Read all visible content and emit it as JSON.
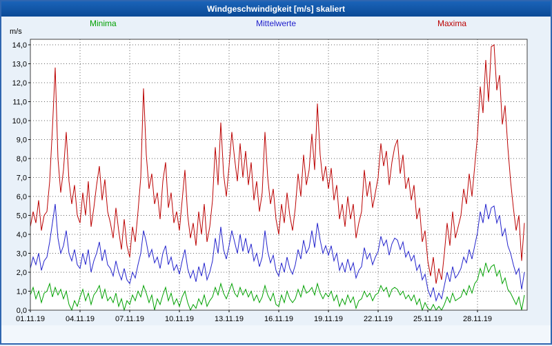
{
  "window": {
    "title": "Windgeschwindigkeit [m/s] skaliert"
  },
  "legend": [
    {
      "label": "Minima",
      "color": "#00a000"
    },
    {
      "label": "Mittelwerte",
      "color": "#2222cc"
    },
    {
      "label": "Maxima",
      "color": "#bb0000"
    }
  ],
  "chart_data": {
    "type": "line",
    "title": "Windgeschwindigkeit [m/s] skaliert",
    "xlabel": "",
    "ylabel": "m/s",
    "ylim": [
      0,
      14.3
    ],
    "ytick_step": 1.0,
    "ytick_labels": [
      "0,0",
      "1,0",
      "2,0",
      "3,0",
      "4,0",
      "5,0",
      "6,0",
      "7,0",
      "8,0",
      "9,0",
      "10,0",
      "11,0",
      "12,0",
      "13,0",
      "14,0"
    ],
    "xtick_labels": [
      "01.11.19",
      "04.11.19",
      "07.11.19",
      "10.11.19",
      "13.11.19",
      "16.11.19",
      "19.11.19",
      "22.11.19",
      "25.11.19",
      "28.11.19"
    ],
    "xtick_day_interval": 3,
    "x_days_span": 30,
    "grid": "dotted",
    "legend_position": "top",
    "series": [
      {
        "name": "Minima",
        "color": "#00a000",
        "values": [
          0.8,
          1.2,
          0.6,
          1.0,
          0.4,
          0.9,
          1.0,
          1.4,
          0.7,
          1.2,
          0.8,
          1.1,
          0.6,
          1.0,
          0.3,
          0.0,
          0.5,
          0.2,
          0.7,
          1.1,
          0.5,
          0.9,
          0.3,
          0.8,
          1.0,
          1.3,
          0.6,
          1.1,
          0.5,
          0.7,
          0.4,
          0.9,
          0.2,
          0.6,
          0.0,
          0.5,
          0.3,
          0.8,
          0.5,
          1.0,
          0.7,
          1.3,
          0.9,
          0.4,
          0.8,
          0.0,
          0.6,
          0.3,
          0.8,
          1.2,
          0.5,
          0.9,
          0.3,
          0.6,
          0.2,
          0.7,
          1.0,
          0.4,
          0.0,
          0.3,
          0.1,
          0.6,
          0.3,
          0.8,
          0.2,
          0.5,
          0.7,
          1.2,
          0.8,
          1.4,
          0.9,
          0.6,
          1.0,
          1.4,
          0.9,
          0.7,
          1.2,
          0.8,
          1.1,
          0.7,
          1.0,
          0.5,
          0.8,
          0.4,
          0.7,
          1.3,
          0.8,
          0.5,
          0.9,
          0.3,
          0.2,
          0.8,
          0.4,
          1.0,
          0.6,
          0.4,
          0.6,
          1.1,
          0.7,
          1.3,
          0.9,
          1.0,
          1.2,
          0.8,
          1.4,
          0.9,
          0.6,
          0.9,
          0.7,
          1.0,
          0.5,
          0.8,
          0.2,
          0.6,
          0.3,
          0.8,
          0.4,
          0.7,
          0.1,
          0.5,
          0.6,
          1.0,
          0.7,
          0.9,
          0.5,
          0.8,
          0.9,
          1.3,
          1.0,
          1.2,
          0.7,
          1.1,
          1.2,
          1.1,
          0.8,
          1.0,
          0.6,
          0.8,
          0.5,
          0.8,
          0.3,
          0.6,
          0.0,
          0.4,
          0.1,
          0.0,
          0.3,
          0.0,
          0.2,
          0.0,
          0.3,
          0.7,
          0.4,
          0.9,
          0.5,
          0.6,
          0.7,
          1.1,
          0.8,
          1.3,
          0.9,
          1.4,
          1.6,
          2.2,
          1.8,
          2.5,
          2.0,
          2.3,
          2.4,
          1.8,
          2.1,
          1.4,
          1.7,
          1.1,
          0.9,
          0.6,
          0.3,
          0.7,
          0.0,
          0.8
        ]
      },
      {
        "name": "Mittelwerte",
        "color": "#2222cc",
        "values": [
          2.2,
          2.8,
          2.4,
          3.0,
          2.1,
          2.6,
          2.8,
          3.6,
          4.6,
          5.6,
          3.8,
          3.0,
          3.4,
          4.2,
          3.0,
          2.6,
          3.2,
          2.4,
          2.2,
          3.0,
          2.4,
          3.2,
          2.0,
          2.6,
          3.0,
          3.6,
          2.6,
          3.2,
          2.4,
          2.2,
          1.8,
          2.6,
          2.0,
          1.6,
          2.2,
          1.6,
          1.4,
          2.0,
          1.7,
          2.4,
          3.0,
          4.2,
          3.6,
          2.8,
          3.2,
          2.5,
          2.8,
          2.2,
          3.0,
          3.4,
          2.4,
          2.8,
          2.1,
          2.4,
          1.9,
          2.6,
          3.2,
          2.2,
          1.7,
          2.1,
          1.5,
          2.3,
          1.8,
          2.5,
          1.6,
          2.0,
          2.6,
          3.8,
          3.0,
          4.4,
          3.2,
          2.7,
          3.4,
          4.2,
          3.6,
          3.0,
          4.0,
          3.1,
          3.8,
          3.0,
          3.5,
          2.6,
          3.0,
          2.3,
          2.8,
          4.2,
          3.1,
          2.5,
          2.9,
          2.1,
          1.8,
          2.5,
          2.0,
          2.8,
          2.2,
          1.9,
          2.4,
          3.2,
          2.7,
          3.7,
          3.0,
          3.3,
          4.2,
          3.3,
          4.6,
          3.7,
          3.0,
          3.4,
          2.9,
          3.4,
          2.6,
          3.0,
          2.1,
          2.5,
          2.0,
          2.7,
          2.1,
          2.5,
          1.7,
          2.1,
          2.3,
          3.3,
          2.7,
          3.0,
          2.4,
          2.8,
          3.1,
          3.9,
          3.4,
          3.7,
          2.9,
          3.5,
          3.8,
          3.7,
          3.2,
          3.6,
          2.8,
          3.1,
          2.6,
          2.9,
          2.1,
          2.4,
          1.6,
          1.9,
          1.1,
          0.7,
          1.2,
          0.5,
          0.9,
          0.6,
          1.3,
          2.0,
          1.5,
          2.3,
          1.7,
          1.9,
          2.2,
          2.8,
          2.5,
          3.2,
          2.7,
          3.4,
          4.1,
          5.2,
          4.6,
          5.6,
          4.8,
          5.4,
          5.5,
          4.6,
          5.0,
          3.9,
          4.3,
          3.4,
          3.0,
          2.4,
          1.9,
          2.2,
          1.1,
          2.0
        ]
      },
      {
        "name": "Maxima",
        "color": "#bb0000",
        "values": [
          4.4,
          5.2,
          4.6,
          5.8,
          4.2,
          5.0,
          5.2,
          6.8,
          9.6,
          12.8,
          8.0,
          6.2,
          7.4,
          9.4,
          6.8,
          5.6,
          6.6,
          5.0,
          4.6,
          6.2,
          5.0,
          6.8,
          4.4,
          5.4,
          6.6,
          7.6,
          5.8,
          6.9,
          5.2,
          4.6,
          3.8,
          5.4,
          4.2,
          3.2,
          4.8,
          3.4,
          2.8,
          4.4,
          3.6,
          5.2,
          7.0,
          11.7,
          8.2,
          6.4,
          7.2,
          5.6,
          6.2,
          4.8,
          6.8,
          7.8,
          5.4,
          6.2,
          4.6,
          5.2,
          4.2,
          5.8,
          7.4,
          5.0,
          3.8,
          4.6,
          3.4,
          5.2,
          4.0,
          5.6,
          3.6,
          4.4,
          5.8,
          8.6,
          6.6,
          9.9,
          7.2,
          6.0,
          7.6,
          9.4,
          8.0,
          6.8,
          8.8,
          7.0,
          8.4,
          6.6,
          7.8,
          5.8,
          6.8,
          5.2,
          6.2,
          9.4,
          7.0,
          5.6,
          6.4,
          4.8,
          4.0,
          5.6,
          4.6,
          6.2,
          5.0,
          4.2,
          5.4,
          7.2,
          6.0,
          8.2,
          6.6,
          7.4,
          9.3,
          7.4,
          10.9,
          8.2,
          6.8,
          7.6,
          6.4,
          7.5,
          5.8,
          6.6,
          4.8,
          5.6,
          4.4,
          6.0,
          4.8,
          5.6,
          3.8,
          4.6,
          5.2,
          7.4,
          6.0,
          6.8,
          5.4,
          6.2,
          7.0,
          8.8,
          7.6,
          8.4,
          6.6,
          7.8,
          8.6,
          9.0,
          7.2,
          8.2,
          6.4,
          7.0,
          5.8,
          6.6,
          4.8,
          5.4,
          3.6,
          4.2,
          2.6,
          1.8,
          2.8,
          1.4,
          2.2,
          1.6,
          3.0,
          4.6,
          3.4,
          5.2,
          3.8,
          4.4,
          5.0,
          6.4,
          5.6,
          7.2,
          6.0,
          7.6,
          9.2,
          11.8,
          10.4,
          13.2,
          11.0,
          13.9,
          14.0,
          11.6,
          12.4,
          9.8,
          10.8,
          8.6,
          6.8,
          5.4,
          4.2,
          5.0,
          2.6,
          4.6
        ]
      }
    ]
  }
}
